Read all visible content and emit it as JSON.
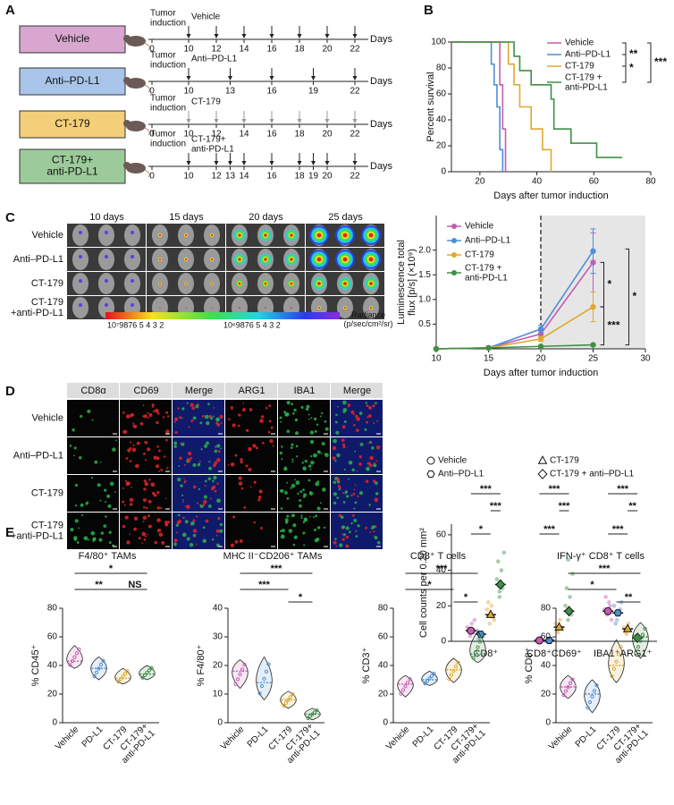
{
  "panel_labels": [
    "A",
    "B",
    "C",
    "D",
    "E"
  ],
  "schedule": {
    "tumor_label": "Tumor\ninduction",
    "axis_label": "Days",
    "groups": [
      {
        "name": "Vehicle",
        "color": "#d9a6cf",
        "marker_color": "#222",
        "treatment": "Vehicle",
        "days": [
          0,
          10,
          12,
          14,
          16,
          18,
          20,
          22
        ]
      },
      {
        "name": "Anti–PD-L1",
        "color": "#a8c5e9",
        "marker_color": "#222",
        "treatment": "Anti–PD-L1",
        "days": [
          0,
          10,
          13,
          16,
          19,
          22
        ]
      },
      {
        "name": "CT-179",
        "color": "#f3cf7a",
        "marker_color": "#999",
        "treatment": "CT-179",
        "days": [
          0,
          10,
          12,
          14,
          16,
          18,
          20,
          22
        ]
      },
      {
        "name": "CT-179+\nanti-PD-L1",
        "color": "#9dca9b",
        "marker_color": "#222",
        "treatment": "CT-179+\nanti-PD-L1",
        "days": [
          0,
          10,
          12,
          13,
          14,
          16,
          18,
          19,
          20,
          22
        ]
      }
    ]
  },
  "imaging": {
    "columns": [
      "10 days",
      "15 days",
      "20 days",
      "25 days"
    ],
    "rows": [
      "Vehicle",
      "Anti–PD-L1",
      "CT-179",
      "CT-179\n+anti-PD-L1"
    ],
    "colorbar_ticks": [
      "10⁷9876 5 4 3 2",
      "10⁶9876 5 4 3 2"
    ],
    "colorbar_label": "Radiance\n(p/sec/cm²/sr)"
  },
  "staining": {
    "columns": [
      "CD8α",
      "CD69",
      "Merge",
      "ARG1",
      "IBA1",
      "Merge"
    ],
    "column_colors": [
      "#2bb34a",
      "#e0262b",
      "#2bb34a",
      "#e0262b",
      "#2bb34a",
      "#2bb34a"
    ],
    "rows": [
      "Vehicle",
      "Anti–PD-L1",
      "CT-179",
      "CT-179\n+anti-PD-L1"
    ]
  },
  "chart_data": [
    {
      "type": "step",
      "xlabel": "Days after tumor induction",
      "ylabel": "Percent survival",
      "xlim": [
        10,
        80
      ],
      "xticks": [
        20,
        40,
        60,
        80
      ],
      "ylim": [
        0,
        100
      ],
      "yticks": [
        0,
        20,
        40,
        60,
        80,
        100
      ],
      "series": [
        {
          "name": "Vehicle",
          "color": "#c75bb0",
          "x": [
            10,
            27,
            28,
            29
          ],
          "values": [
            100,
            67,
            33,
            0
          ]
        },
        {
          "name": "Anti–PD-L1",
          "color": "#4d8fd6",
          "x": [
            10,
            24,
            25,
            26,
            27,
            28
          ],
          "values": [
            100,
            83,
            67,
            50,
            17,
            0
          ]
        },
        {
          "name": "CT-179",
          "color": "#e0a82e",
          "x": [
            10,
            30,
            32,
            34,
            38,
            42,
            45
          ],
          "values": [
            100,
            83,
            67,
            50,
            33,
            17,
            0
          ]
        },
        {
          "name": "CT-179 +\nanti-PD-L1",
          "color": "#3f8f46",
          "x": [
            10,
            32,
            34,
            38,
            45,
            46,
            52,
            61,
            70
          ],
          "values": [
            100,
            89,
            78,
            67,
            56,
            33,
            22,
            11,
            11
          ]
        }
      ],
      "significance": [
        "**",
        "*",
        "***"
      ]
    },
    {
      "type": "line",
      "xlabel": "Days after tumor induction",
      "ylabel": "Luminescence total\nflux [p/s] (×10⁹)",
      "xlim": [
        10,
        30
      ],
      "xticks": [
        10,
        15,
        20,
        25,
        30
      ],
      "ylim": [
        0,
        2.7
      ],
      "yticks": [
        0.5,
        {
          "value": 1,
          "label": "1.0"
        },
        1.5,
        {
          "value": 2,
          "label": "2.0"
        }
      ],
      "shaded_x": [
        20,
        30
      ],
      "x": [
        10,
        15,
        20,
        25
      ],
      "series": [
        {
          "name": "Vehicle",
          "color": "#c75bb0",
          "values": [
            0,
            0.02,
            0.3,
            1.75
          ],
          "errors": [
            0,
            0,
            0.06,
            0.6
          ]
        },
        {
          "name": "Anti–PD-L1",
          "color": "#4d8fd6",
          "values": [
            0,
            0.02,
            0.4,
            1.98
          ],
          "errors": [
            0,
            0,
            0.08,
            0.45
          ]
        },
        {
          "name": "CT-179",
          "color": "#e0a82e",
          "values": [
            0,
            0.02,
            0.2,
            0.85
          ],
          "errors": [
            0,
            0,
            0.05,
            0.3
          ]
        },
        {
          "name": "CT-179 +\nanti-PD-L1",
          "color": "#3f8f46",
          "values": [
            0,
            0.02,
            0.05,
            0.08
          ],
          "errors": [
            0,
            0,
            0.01,
            0.02
          ]
        }
      ],
      "significance": [
        "*",
        "***",
        "*"
      ]
    },
    {
      "type": "dot",
      "ylabel": "Cell counts per 0.20 mm²",
      "categories": [
        "CD8⁺",
        "CD8⁺CD69⁺",
        "IBA1⁺ARG1⁺"
      ],
      "ylim": [
        0,
        66
      ],
      "yticks": [
        0,
        20,
        40,
        60
      ],
      "series": [
        {
          "name": "Vehicle",
          "marker": "circle",
          "color": "#c75bb0",
          "values": [
            6,
            0.5,
            17
          ],
          "points": [
            [
              3,
              5,
              8,
              10,
              6,
              12
            ],
            [
              0,
              1,
              0,
              2,
              1
            ],
            [
              15,
              20,
              18,
              22,
              25,
              12
            ]
          ]
        },
        {
          "name": "Anti–PD-L1",
          "marker": "hexagon",
          "color": "#4d8fd6",
          "values": [
            4,
            0.5,
            16
          ],
          "points": [
            [
              2,
              3,
              6,
              4,
              1
            ],
            [
              0,
              1,
              0,
              1,
              0
            ],
            [
              12,
              18,
              20,
              16,
              10,
              22
            ]
          ]
        },
        {
          "name": "CT-179",
          "marker": "triangle",
          "color": "#e0a82e",
          "values": [
            15,
            8,
            7
          ],
          "points": [
            [
              10,
              14,
              18,
              20,
              22,
              12
            ],
            [
              5,
              8,
              10,
              12,
              6
            ],
            [
              4,
              6,
              8,
              10,
              5
            ]
          ]
        },
        {
          "name": "CT-179 + anti–PD-L1",
          "marker": "diamond",
          "color": "#3f8f46",
          "values": [
            32,
            17,
            2
          ],
          "points": [
            [
              25,
              30,
              35,
              40,
              45,
              50,
              28
            ],
            [
              12,
              15,
              20,
              25,
              30,
              38,
              46
            ],
            [
              1,
              2,
              3,
              1,
              2
            ]
          ]
        }
      ],
      "significance": [
        [
          "***",
          "***",
          "*"
        ],
        [
          "***",
          "***",
          "***"
        ],
        [
          "***",
          "**",
          "***"
        ]
      ]
    },
    {
      "type": "violin",
      "title": "F4/80⁺ TAMs",
      "ylabel": "% CD45⁺",
      "categories": [
        "Vehicle",
        "PD-L1",
        "CT-179",
        "CT-179+\nanti-PD-L1"
      ],
      "colors": [
        "#c75bb0",
        "#4d8fd6",
        "#e0a82e",
        "#3f8f46"
      ],
      "ylim": [
        0,
        80
      ],
      "yticks": [
        0,
        20,
        40,
        60,
        80
      ],
      "values": [
        43,
        38,
        31,
        34
      ],
      "min": [
        38,
        30,
        27,
        30
      ],
      "max": [
        54,
        46,
        38,
        40
      ],
      "significance": [
        "*",
        "**",
        "NS"
      ]
    },
    {
      "type": "violin",
      "title": "MHC II⁻CD206⁺ TAMs",
      "ylabel": "% F4/80⁺",
      "categories": [
        "Vehicle",
        "PD-L1",
        "CT-179",
        "CT-179+\nanti-PD-L1"
      ],
      "colors": [
        "#c75bb0",
        "#4d8fd6",
        "#e0a82e",
        "#3f8f46"
      ],
      "ylim": [
        0,
        40
      ],
      "yticks": [
        0,
        10,
        20,
        30,
        40
      ],
      "values": [
        18,
        14,
        8,
        3
      ],
      "min": [
        12,
        8,
        5,
        1
      ],
      "max": [
        22,
        23,
        11,
        5
      ],
      "significance": [
        "***",
        "***",
        "*"
      ]
    },
    {
      "type": "violin",
      "title": "CD8⁺ T cells",
      "ylabel": "% CD3⁺",
      "categories": [
        "Vehicle",
        "PD-L1",
        "CT-179",
        "CT-179+\nanti-PD-L1"
      ],
      "colors": [
        "#c75bb0",
        "#4d8fd6",
        "#e0a82e",
        "#3f8f46"
      ],
      "ylim": [
        0,
        80
      ],
      "yticks": [
        0,
        20,
        40,
        60,
        80
      ],
      "values": [
        27,
        30,
        37,
        48
      ],
      "min": [
        18,
        26,
        28,
        42
      ],
      "max": [
        33,
        36,
        45,
        64
      ],
      "significance": [
        "***",
        "*",
        "*"
      ]
    },
    {
      "type": "violin",
      "title": "IFN-γ⁺ CD8⁺ T cells",
      "ylabel": "% CD8⁺",
      "categories": [
        "Vehicle",
        "PD-L1",
        "CT-179",
        "CT-179+\nanti-PD-L1"
      ],
      "colors": [
        "#c75bb0",
        "#4d8fd6",
        "#e0a82e",
        "#3f8f46"
      ],
      "ylim": [
        0,
        80
      ],
      "yticks": [
        0,
        20,
        40,
        60,
        80
      ],
      "values": [
        25,
        20,
        40,
        60
      ],
      "min": [
        17,
        7,
        28,
        45
      ],
      "max": [
        33,
        30,
        58,
        70
      ],
      "significance": [
        "***",
        "*",
        "**"
      ]
    }
  ]
}
